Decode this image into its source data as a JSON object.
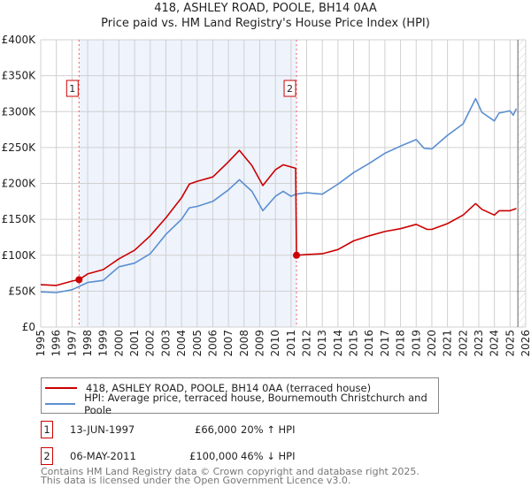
{
  "title": "418, ASHLEY ROAD, POOLE, BH14 0AA",
  "subtitle": "Price paid vs. HM Land Registry's House Price Index (HPI)",
  "colors": {
    "property": "#cc0000",
    "hpi": "#5b8fd0",
    "shade": "#eef3fc",
    "marker_box": "#cc0000"
  },
  "chart_data": {
    "type": "line",
    "title": "418, ASHLEY ROAD, POOLE, BH14 0AA",
    "subtitle": "Price paid vs. HM Land Registry's House Price Index (HPI)",
    "xlim": [
      1995,
      2026
    ],
    "ylim": [
      0,
      400000
    ],
    "x_ticks": [
      "1995",
      "1996",
      "1997",
      "1998",
      "1999",
      "2000",
      "2001",
      "2002",
      "2003",
      "2004",
      "2005",
      "2006",
      "2007",
      "2008",
      "2009",
      "2010",
      "2011",
      "2012",
      "2013",
      "2014",
      "2015",
      "2016",
      "2017",
      "2018",
      "2019",
      "2020",
      "2021",
      "2022",
      "2023",
      "2024",
      "2025",
      "2026"
    ],
    "y_ticks": [
      {
        "value": 0,
        "label": "£0"
      },
      {
        "value": 50000,
        "label": "£50K"
      },
      {
        "value": 100000,
        "label": "£100K"
      },
      {
        "value": 150000,
        "label": "£150K"
      },
      {
        "value": 200000,
        "label": "£200K"
      },
      {
        "value": 250000,
        "label": "£250K"
      },
      {
        "value": 300000,
        "label": "£300K"
      },
      {
        "value": 350000,
        "label": "£350K"
      },
      {
        "value": 400000,
        "label": "£400K"
      }
    ],
    "grid": true,
    "shaded_range": [
      1997.45,
      2011.35
    ],
    "hatched_from": 2025.5,
    "series": [
      {
        "name": "418, ASHLEY ROAD, POOLE, BH14 0AA (terraced house)",
        "color": "#cc0000",
        "x": [
          1995,
          1996,
          1997,
          1997.45,
          1998,
          1999,
          2000,
          2001,
          2002,
          2003,
          2004,
          2004.5,
          2005,
          2006,
          2007,
          2007.7,
          2008.5,
          2009.2,
          2010,
          2010.5,
          2011.3,
          2011.35,
          2012,
          2013,
          2014,
          2015,
          2016,
          2017,
          2018,
          2019,
          2019.7,
          2020,
          2021,
          2022,
          2022.8,
          2023.2,
          2024,
          2024.3,
          2025,
          2025.4
        ],
        "y": [
          59000,
          58000,
          64000,
          66000,
          74000,
          80000,
          95000,
          107000,
          127000,
          152000,
          180000,
          199000,
          203000,
          209000,
          230000,
          246000,
          225000,
          197000,
          219000,
          226000,
          221000,
          100000,
          101000,
          102000,
          108000,
          120000,
          127000,
          133000,
          137000,
          143000,
          136000,
          136000,
          144000,
          156000,
          172000,
          164000,
          156000,
          162000,
          162000,
          165000
        ]
      },
      {
        "name": "HPI: Average price, terraced house, Bournemouth Christchurch and Poole",
        "color": "#5b8fd0",
        "x": [
          1995,
          1996,
          1997,
          1998,
          1999,
          2000,
          2001,
          2002,
          2003,
          2004,
          2004.5,
          2005,
          2006,
          2007,
          2007.7,
          2008.5,
          2009.2,
          2010,
          2010.5,
          2011,
          2011.3,
          2012,
          2013,
          2014,
          2015,
          2016,
          2017,
          2018,
          2019,
          2019.5,
          2020,
          2021,
          2022,
          2022.8,
          2023.2,
          2024,
          2024.3,
          2025,
          2025.2,
          2025.4
        ],
        "y": [
          49000,
          48000,
          52000,
          62000,
          65000,
          84000,
          89000,
          102000,
          129000,
          150000,
          166000,
          168000,
          175000,
          191000,
          205000,
          189000,
          162000,
          182000,
          189000,
          182000,
          185000,
          187000,
          185000,
          199000,
          215000,
          228000,
          242000,
          252000,
          261000,
          249000,
          248000,
          267000,
          283000,
          318000,
          299000,
          287000,
          298000,
          301000,
          295000,
          304000
        ]
      }
    ],
    "sales": [
      {
        "label": "1",
        "x": 1997.45,
        "y": 66000
      },
      {
        "label": "2",
        "x": 2011.35,
        "y": 100000
      }
    ]
  },
  "legend": {
    "property": "418, ASHLEY ROAD, POOLE, BH14 0AA (terraced house)",
    "hpi": "HPI: Average price, terraced house, Bournemouth Christchurch and Poole"
  },
  "sales_table": [
    {
      "num": "1",
      "date": "13-JUN-1997",
      "price": "£66,000",
      "hpi": "20% ↑ HPI"
    },
    {
      "num": "2",
      "date": "06-MAY-2011",
      "price": "£100,000",
      "hpi": "46% ↓ HPI"
    }
  ],
  "footer": {
    "line1": "Contains HM Land Registry data © Crown copyright and database right 2025.",
    "line2": "This data is licensed under the Open Government Licence v3.0."
  }
}
